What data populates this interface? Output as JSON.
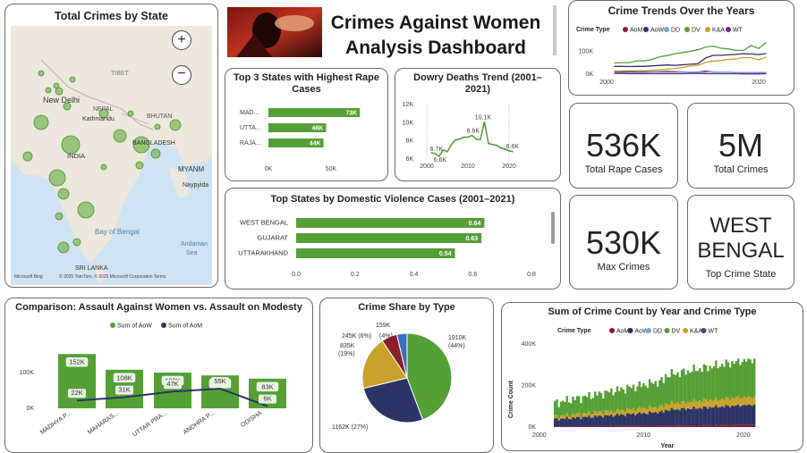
{
  "header": {
    "title_line1": "Crimes Against Women",
    "title_line2": "Analysis Dashboard"
  },
  "map": {
    "title": "Total Crimes by State",
    "labels": {
      "new_delhi": "New Delhi",
      "nepal": "NEPAL",
      "kathmandu": "Kathmandu",
      "bhutan": "BHUTAN",
      "tibet": "TIBET",
      "bangladesh": "BANGLADESH",
      "india": "INDIA",
      "myanmar": "MYANM",
      "naypyidaw": "Naypyida",
      "bay": "Bay of Bengal",
      "sri_lanka": "SRI LANKA",
      "andaman": "Andaman",
      "sea": "Sea"
    },
    "attribution": "© 2025 TomTom, © 2025 Microsoft Corporation  Terms",
    "ms_logo": "Microsoft Bing"
  },
  "top3": {
    "title": "Top 3 States with Highest Rape Cases",
    "labels": [
      "MAD...",
      "UTTA...",
      "RAJA..."
    ],
    "value_labels": [
      "73K",
      "46K",
      "44K"
    ],
    "values": [
      73,
      46,
      44
    ],
    "ticks": [
      "0K",
      "50K"
    ]
  },
  "dowry": {
    "title": "Dowry Deaths Trend (2001–2021)",
    "yticks": [
      "12K",
      "10K",
      "8K",
      "6K"
    ],
    "xticks": [
      "2000",
      "2010",
      "2020"
    ],
    "point_labels": [
      "6.7K",
      "8.6K",
      "10.1K",
      "6.8K",
      "6.6K"
    ]
  },
  "dv": {
    "title": "Top States by Domestic Violence Cases (2001–2021)",
    "labels": [
      "WEST BENGAL",
      "GUJARAT",
      "UTTARAKHAND"
    ],
    "value_labels": [
      "0.64",
      "0.63",
      "0.54"
    ],
    "values": [
      0.64,
      0.63,
      0.54
    ],
    "ticks": [
      "0.0",
      "0.2",
      "0.4",
      "0.6",
      "0.8"
    ]
  },
  "trends": {
    "title": "Crime Trends Over the Years",
    "legend_title": "Crime Type",
    "legend": [
      "AoM",
      "AoW",
      "DD",
      "DV",
      "K&A",
      "WT"
    ],
    "yticks": [
      "100K",
      "0K"
    ],
    "xticks": [
      "2000",
      "2020"
    ]
  },
  "kpis": [
    {
      "value": "536K",
      "label": "Total Rape Cases"
    },
    {
      "value": "5M",
      "label": "Total Crimes"
    },
    {
      "value": "530K",
      "label": "Max Crimes"
    },
    {
      "value_line1": "WEST",
      "value_line2": "BENGAL",
      "label": "Top Crime State"
    }
  ],
  "comparison": {
    "title": "Comparison: Assault Against Women vs. Assault on Modesty",
    "legend": [
      "Sum of AoW",
      "Sum of AoM"
    ],
    "yticks": [
      "100K",
      "0K"
    ]
  },
  "share": {
    "title": "Crime Share by Type",
    "slice_labels": [
      "1910K (44%)",
      "1162K (27%)",
      "835K (19%)",
      "245K (6%)",
      "159K (4%)"
    ]
  },
  "stacked": {
    "title": "Sum of Crime Count by Year and Crime Type",
    "legend_title": "Crime Type",
    "legend": [
      "AoM",
      "AoW",
      "DD",
      "DV",
      "K&A",
      "WT"
    ],
    "yticks": [
      "400K",
      "200K",
      "0K"
    ],
    "xticks": [
      "2000",
      "2010",
      "2020"
    ],
    "ylabel": "Crime Count",
    "xlabel": "Year"
  },
  "colors": {
    "green": "#55a036",
    "navy": "#2b3467",
    "maroon": "#8b1e2e",
    "blue": "#3a6fbf",
    "gold": "#c8a22b",
    "purple": "#6a2c8a",
    "lightblue": "#6fa8dc"
  },
  "chart_data": [
    {
      "type": "bar",
      "title": "Top 3 States with Highest Rape Cases",
      "categories": [
        "MAD...",
        "UTTA...",
        "RAJA..."
      ],
      "values": [
        73000,
        46000,
        44000
      ]
    },
    {
      "type": "line",
      "title": "Dowry Deaths Trend (2001–2021)",
      "x": [
        2001,
        2021
      ],
      "ylim": [
        6000,
        12000
      ]
    },
    {
      "type": "bar",
      "title": "Top States by Domestic Violence Cases (2001–2021)",
      "categories": [
        "WEST BENGAL",
        "GUJARAT",
        "UTTARAKHAND"
      ],
      "values": [
        0.64,
        0.63,
        0.54
      ],
      "xlim": [
        0,
        0.8
      ]
    },
    {
      "type": "bar",
      "title": "Comparison: Assault Against Women vs. Assault on Modesty",
      "categories": [
        "MADHYA P...",
        "MAHARAS...",
        "UTTAR PRA...",
        "ANDHRA P...",
        "ODISHA"
      ],
      "series": [
        {
          "name": "Sum of AoW",
          "values": [
            152000,
            108000,
            100000,
            92000,
            83000
          ]
        },
        {
          "name": "Sum of AoM",
          "values": [
            22000,
            31000,
            47000,
            55000,
            6000
          ]
        }
      ]
    },
    {
      "type": "pie",
      "title": "Crime Share by Type",
      "values": [
        1910000,
        1162000,
        835000,
        245000,
        159000
      ]
    }
  ]
}
